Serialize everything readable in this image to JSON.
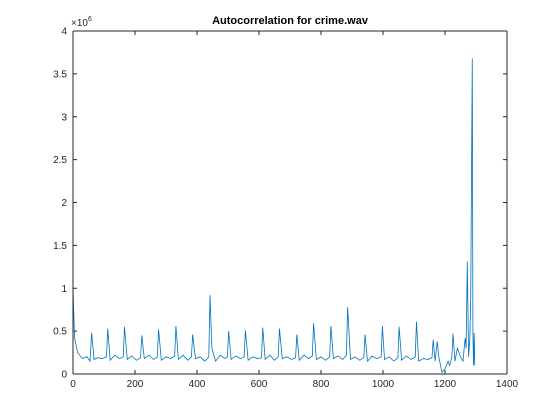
{
  "chart_data": {
    "type": "line",
    "title": "Autocorrelation for crime.wav",
    "xlabel": "",
    "ylabel": "",
    "xlim": [
      0,
      1400
    ],
    "ylim": [
      0,
      4000000
    ],
    "x_ticks": [
      0,
      200,
      400,
      600,
      800,
      1000,
      1200,
      1400
    ],
    "x_tick_labels": [
      "0",
      "200",
      "400",
      "600",
      "800",
      "1000",
      "1200",
      "1400"
    ],
    "y_ticks": [
      0,
      500000,
      1000000,
      1500000,
      2000000,
      2500000,
      3000000,
      3500000,
      4000000
    ],
    "y_tick_labels": [
      "0",
      "0.5",
      "1",
      "1.5",
      "2",
      "2.5",
      "3",
      "3.5",
      "4"
    ],
    "y_exponent_label": "×10",
    "y_exponent_power": "6",
    "grid": false,
    "series_color": "#0072BD",
    "series": [
      {
        "x": [
          0,
          5,
          15,
          30,
          45,
          55,
          60,
          68,
          80,
          95,
          108,
          112,
          120,
          135,
          150,
          162,
          166,
          175,
          190,
          205,
          218,
          222,
          230,
          245,
          260,
          272,
          276,
          285,
          300,
          315,
          328,
          332,
          340,
          355,
          370,
          382,
          386,
          395,
          410,
          425,
          438,
          442,
          448,
          460,
          475,
          490,
          498,
          502,
          510,
          525,
          540,
          552,
          556,
          565,
          580,
          595,
          608,
          612,
          620,
          635,
          650,
          662,
          666,
          675,
          690,
          705,
          718,
          722,
          730,
          745,
          760,
          772,
          776,
          785,
          800,
          815,
          828,
          832,
          840,
          855,
          870,
          882,
          886,
          895,
          910,
          925,
          938,
          942,
          950,
          965,
          980,
          994,
          998,
          1005,
          1020,
          1035,
          1048,
          1052,
          1060,
          1075,
          1090,
          1104,
          1108,
          1115,
          1130,
          1145,
          1158,
          1162,
          1168,
          1175,
          1180,
          1190,
          1200,
          1210,
          1215,
          1222,
          1226,
          1232,
          1240,
          1250,
          1258,
          1265,
          1268,
          1272,
          1276,
          1280,
          1283,
          1286,
          1288,
          1290,
          1292,
          1294,
          1296
        ],
        "y": [
          1000000,
          420000,
          250000,
          180000,
          200000,
          150000,
          480000,
          170000,
          190000,
          180000,
          200000,
          530000,
          160000,
          220000,
          180000,
          200000,
          550000,
          170000,
          210000,
          160000,
          190000,
          450000,
          180000,
          220000,
          170000,
          200000,
          520000,
          160000,
          200000,
          180000,
          210000,
          560000,
          170000,
          220000,
          160000,
          200000,
          460000,
          180000,
          200000,
          150000,
          200000,
          920000,
          300000,
          150000,
          220000,
          180000,
          200000,
          500000,
          170000,
          210000,
          180000,
          200000,
          510000,
          160000,
          200000,
          180000,
          190000,
          540000,
          170000,
          220000,
          160000,
          200000,
          530000,
          180000,
          200000,
          170000,
          190000,
          460000,
          160000,
          220000,
          180000,
          210000,
          590000,
          170000,
          200000,
          160000,
          200000,
          560000,
          180000,
          210000,
          170000,
          220000,
          780000,
          170000,
          200000,
          160000,
          190000,
          460000,
          150000,
          210000,
          180000,
          200000,
          560000,
          170000,
          200000,
          150000,
          190000,
          550000,
          160000,
          210000,
          170000,
          200000,
          610000,
          150000,
          180000,
          170000,
          190000,
          400000,
          150000,
          380000,
          200000,
          20000,
          60000,
          150000,
          100000,
          200000,
          470000,
          150000,
          300000,
          200000,
          150000,
          420000,
          300000,
          1310000,
          200000,
          400000,
          900000,
          2600000,
          3680000,
          500000,
          100000,
          480000,
          100000
        ]
      }
    ]
  }
}
